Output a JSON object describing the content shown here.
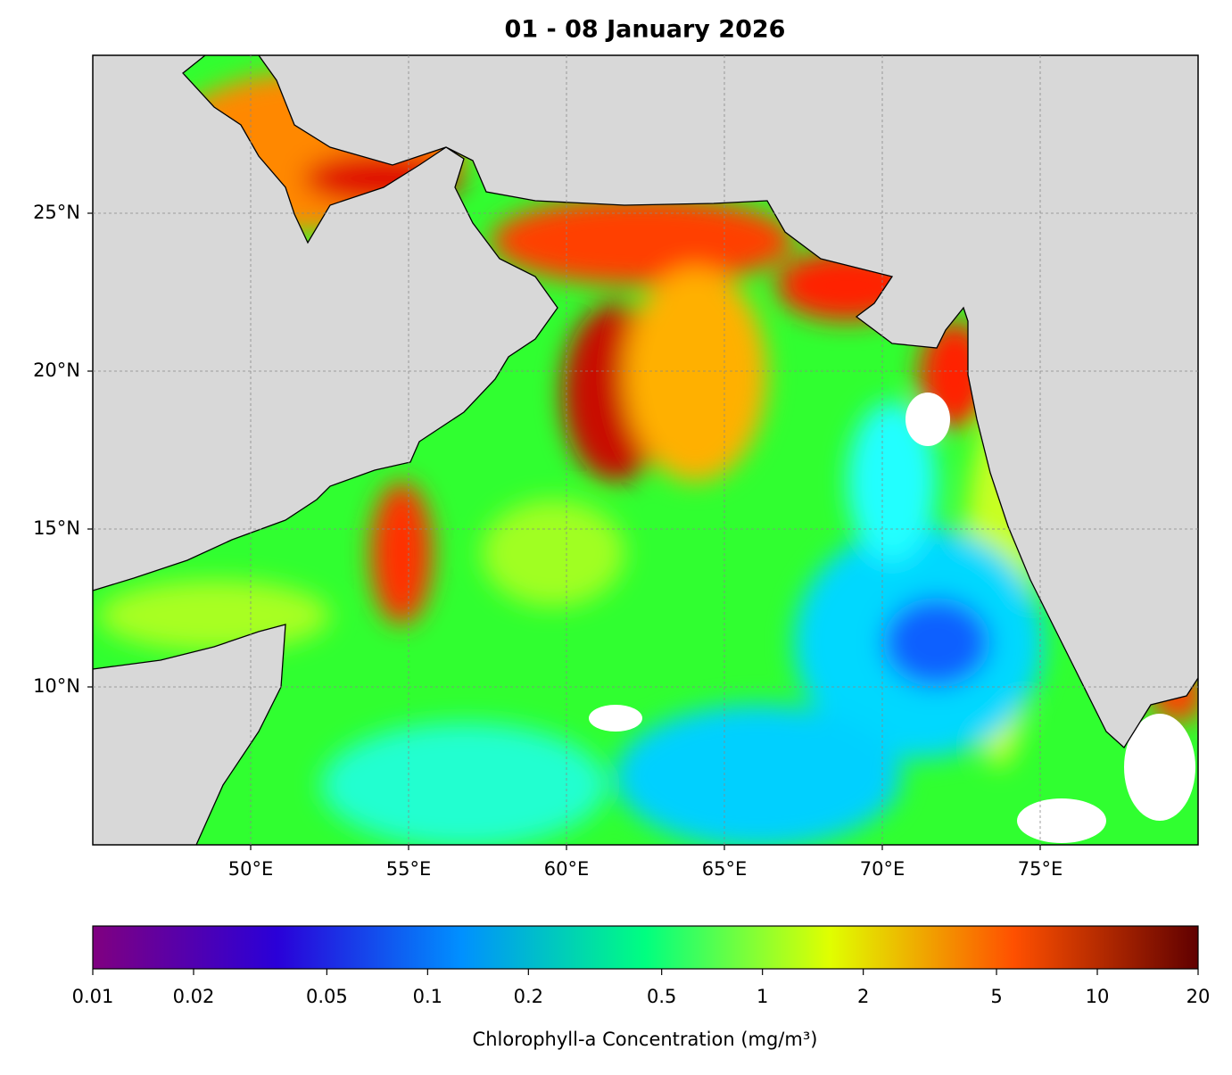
{
  "map": {
    "title": "01 - 08 January 2026",
    "xlim": [
      45,
      80
    ],
    "ylim": [
      5,
      30
    ],
    "xticks": [
      {
        "value": 50,
        "label": "50°E"
      },
      {
        "value": 55,
        "label": "55°E"
      },
      {
        "value": 60,
        "label": "60°E"
      },
      {
        "value": 65,
        "label": "65°E"
      },
      {
        "value": 70,
        "label": "70°E"
      },
      {
        "value": 75,
        "label": "75°E"
      }
    ],
    "yticks": [
      {
        "value": 10,
        "label": "10°N"
      },
      {
        "value": 15,
        "label": "15°N"
      },
      {
        "value": 20,
        "label": "20°N"
      },
      {
        "value": 25,
        "label": "25°N"
      }
    ],
    "grid": true,
    "colorbar": {
      "scale": "log",
      "lim": [
        0.01,
        20
      ],
      "ticks": [
        0.01,
        0.02,
        0.05,
        0.1,
        0.2,
        0.5,
        1,
        2,
        5,
        10,
        20
      ],
      "label": "Chlorophyll-a Concentration (mg/m³)",
      "colors": [
        "#800080",
        "#2a00d8",
        "#0090ff",
        "#00ff80",
        "#e0ff00",
        "#ff5000",
        "#600000"
      ]
    }
  }
}
